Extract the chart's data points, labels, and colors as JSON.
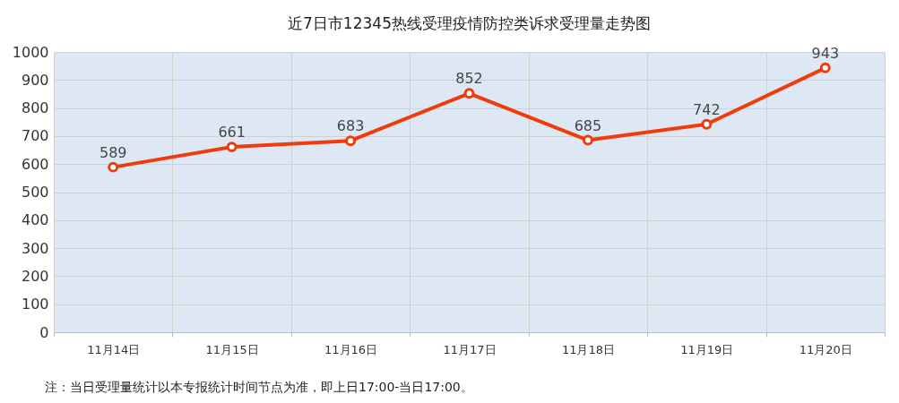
{
  "chart_data": {
    "type": "line",
    "title": "近7日市12345热线受理疫情防控类诉求受理量走势图",
    "categories": [
      "11月14日",
      "11月15日",
      "11月16日",
      "11月17日",
      "11月18日",
      "11月19日",
      "11月20日"
    ],
    "series": [
      {
        "color": "#f03c0a",
        "values": [
          589,
          661,
          683,
          852,
          685,
          742,
          943
        ]
      }
    ],
    "ylim": [
      0,
      1000
    ],
    "yticks": [
      0,
      100,
      200,
      300,
      400,
      500,
      600,
      700,
      800,
      900,
      1000
    ],
    "grid": true,
    "marker": "circle",
    "data_labels": true,
    "annotations": [
      "注：当日受理量统计以本专报统计时间节点为准，即上日17:00-当日17:00。"
    ]
  }
}
